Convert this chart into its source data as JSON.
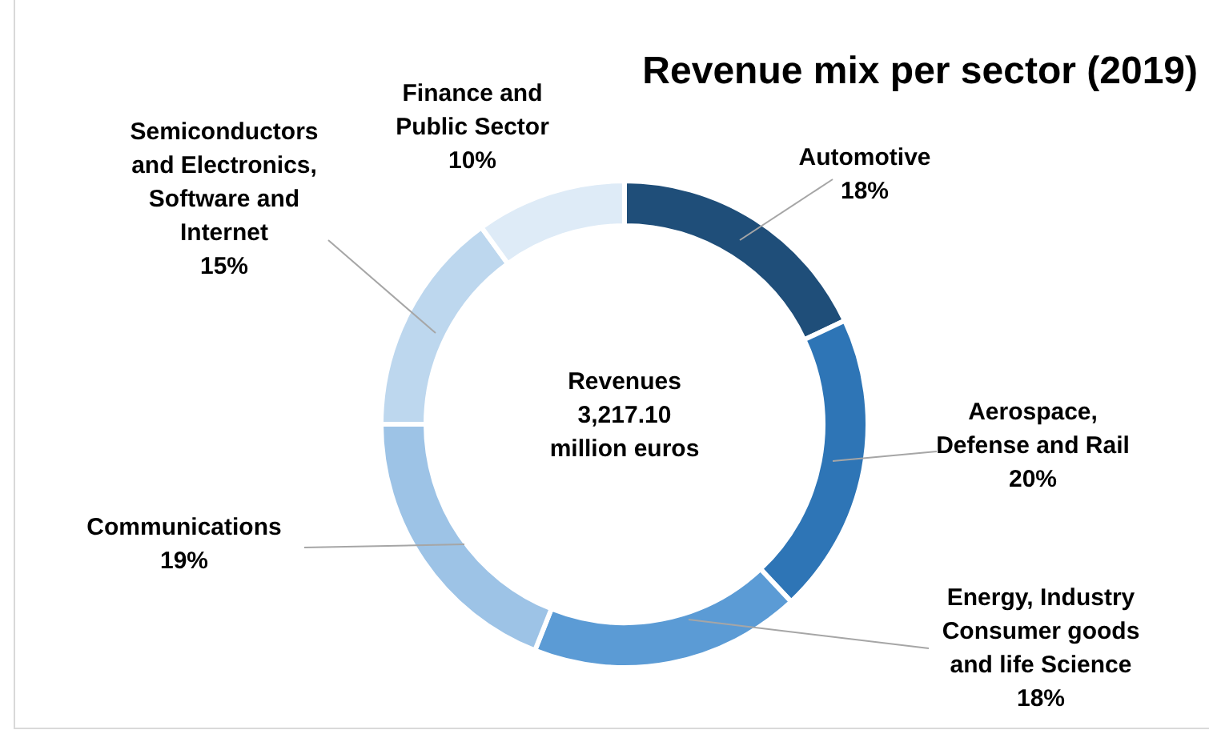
{
  "chart_data": {
    "type": "donut",
    "title": "Revenue mix per sector (2019)",
    "categories": [
      "Automotive",
      "Aerospace, Defense and Rail",
      "Energy, Industry Consumer goods and life Science",
      "Communications",
      "Semiconductors and Electronics, Software and Internet",
      "Finance and Public Sector"
    ],
    "values": [
      18,
      20,
      18,
      19,
      15,
      10
    ],
    "colors": [
      "#1f4e79",
      "#2e75b6",
      "#5b9bd5",
      "#9dc3e6",
      "#bdd7ee",
      "#deebf7"
    ],
    "value_labels": [
      "18%",
      "20%",
      "18%",
      "19%",
      "15%",
      "10%"
    ],
    "annotations": [
      "Revenues 3,217.10 million euros"
    ]
  }
}
